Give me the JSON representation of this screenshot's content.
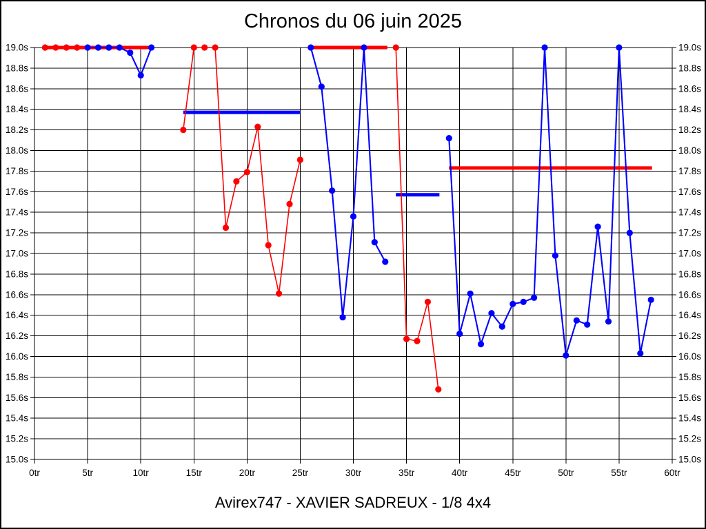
{
  "chart_data": {
    "type": "line",
    "title": "Chronos du 06 juin 2025",
    "footer": "Avirex747 - XAVIER SADREUX - 1/8 4x4",
    "xlim": [
      0,
      60
    ],
    "ylim": [
      15.0,
      19.0
    ],
    "x_tick_step": 5,
    "y_tick_step": 0.2,
    "grid": true,
    "legend": "none",
    "x_ticks": [
      "0tr",
      "5tr",
      "10tr",
      "15tr",
      "20tr",
      "25tr",
      "30tr",
      "35tr",
      "40tr",
      "45tr",
      "50tr",
      "55tr",
      "60tr"
    ],
    "y_ticks": [
      "19.0s",
      "18.8s",
      "18.6s",
      "18.4s",
      "18.2s",
      "18.0s",
      "17.8s",
      "17.6s",
      "17.4s",
      "17.2s",
      "17.0s",
      "16.8s",
      "16.6s",
      "16.4s",
      "16.2s",
      "16.0s",
      "15.8s",
      "15.6s",
      "15.4s",
      "15.2s",
      "15.0s"
    ],
    "colors": {
      "red": "#ff0000",
      "blue": "#0000ff",
      "axis": "#000000",
      "background": "#ffffff"
    },
    "series": [
      {
        "name": "red-stint-1",
        "color": "red",
        "points": [
          [
            1,
            19.0
          ],
          [
            2,
            19.0
          ],
          [
            3,
            19.0
          ],
          [
            4,
            19.0
          ]
        ]
      },
      {
        "name": "blue-stint-1",
        "color": "blue",
        "points": [
          [
            5,
            19.0
          ],
          [
            6,
            19.0
          ],
          [
            7,
            19.0
          ],
          [
            8,
            19.0
          ],
          [
            9,
            18.95
          ],
          [
            10,
            18.73
          ],
          [
            11,
            19.0
          ]
        ]
      },
      {
        "name": "red-stint-2",
        "color": "red",
        "points": [
          [
            14,
            18.2
          ],
          [
            15,
            19.0
          ],
          [
            16,
            19.0
          ],
          [
            17,
            19.0
          ],
          [
            18,
            17.25
          ],
          [
            19,
            17.7
          ],
          [
            20,
            17.79
          ],
          [
            21,
            18.23
          ],
          [
            22,
            17.08
          ],
          [
            23,
            16.61
          ],
          [
            24,
            17.48
          ],
          [
            25,
            17.91
          ]
        ]
      },
      {
        "name": "blue-stint-2",
        "color": "blue",
        "points": [
          [
            26,
            19.0
          ],
          [
            27,
            18.62
          ],
          [
            28,
            17.61
          ],
          [
            29,
            16.38
          ],
          [
            30,
            17.36
          ],
          [
            31,
            19.0
          ],
          [
            32,
            17.11
          ],
          [
            33,
            16.92
          ]
        ]
      },
      {
        "name": "red-stint-3",
        "color": "red",
        "points": [
          [
            34,
            19.0
          ],
          [
            35,
            16.17
          ],
          [
            36,
            16.15
          ],
          [
            37,
            16.53
          ],
          [
            38,
            15.68
          ]
        ]
      },
      {
        "name": "blue-stint-3",
        "color": "blue",
        "points": [
          [
            39,
            18.12
          ],
          [
            40,
            16.22
          ],
          [
            41,
            16.61
          ],
          [
            42,
            16.12
          ],
          [
            43,
            16.42
          ],
          [
            44,
            16.29
          ],
          [
            45,
            16.51
          ],
          [
            46,
            16.53
          ],
          [
            47,
            16.57
          ],
          [
            48,
            19.0
          ],
          [
            49,
            16.98
          ],
          [
            50,
            16.01
          ],
          [
            51,
            16.35
          ],
          [
            52,
            16.31
          ],
          [
            53,
            17.26
          ],
          [
            54,
            16.34
          ],
          [
            55,
            19.0
          ],
          [
            56,
            17.2
          ],
          [
            57,
            16.03
          ],
          [
            58,
            16.55
          ]
        ]
      }
    ],
    "average_lines": [
      {
        "name": "red-average-1",
        "color": "red",
        "value": 19.0,
        "x_start": 1.0,
        "x_end": 11.2
      },
      {
        "name": "blue-average-1",
        "color": "blue",
        "value": 18.37,
        "x_start": 14.0,
        "x_end": 25.0
      },
      {
        "name": "red-average-2",
        "color": "red",
        "value": 19.0,
        "x_start": 26.0,
        "x_end": 33.2
      },
      {
        "name": "blue-average-2",
        "color": "blue",
        "value": 17.57,
        "x_start": 34.0,
        "x_end": 38.1
      },
      {
        "name": "red-average-3",
        "color": "red",
        "value": 17.83,
        "x_start": 39.0,
        "x_end": 58.1
      }
    ]
  }
}
